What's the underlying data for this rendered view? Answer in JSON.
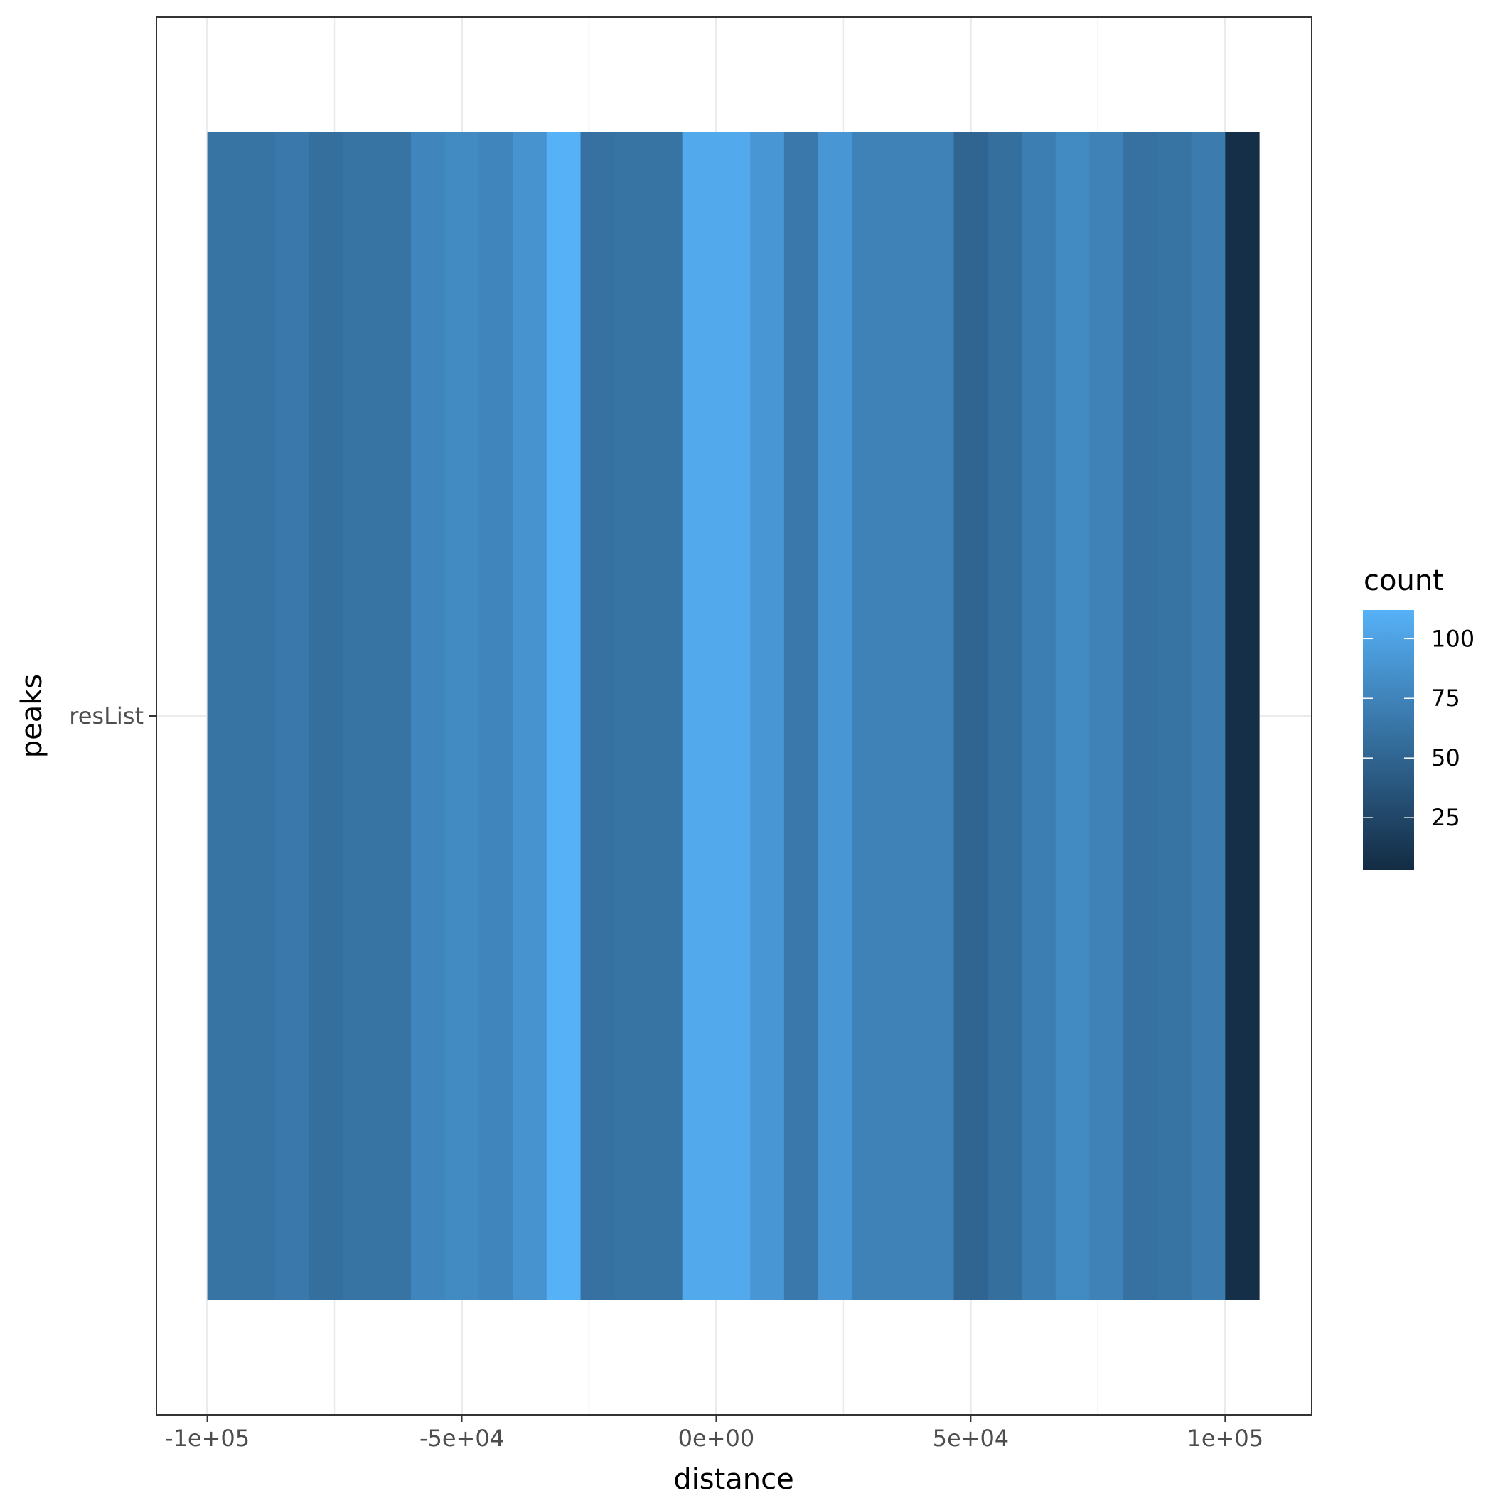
{
  "chart_data": {
    "type": "heatmap",
    "xlabel": "distance",
    "ylabel": "peaks",
    "y_categories": [
      "resList"
    ],
    "x_ticks": [
      {
        "value": -100000,
        "label": "-1e+05"
      },
      {
        "value": -50000,
        "label": "-5e+04"
      },
      {
        "value": 0,
        "label": "0e+00"
      },
      {
        "value": 50000,
        "label": "5e+04"
      },
      {
        "value": 100000,
        "label": "1e+05"
      }
    ],
    "xlim": [
      -110000,
      117000
    ],
    "bin_width": 6667,
    "bin_starts": [
      -100000,
      -93333,
      -86667,
      -80000,
      -73333,
      -66667,
      -60000,
      -53333,
      -46667,
      -40000,
      -33333,
      -26667,
      -20000,
      -13333,
      -6667,
      0,
      6667,
      13333,
      20000,
      26667,
      33333,
      40000,
      46667,
      53333,
      60000,
      66667,
      73333,
      80000,
      86667,
      93333,
      100000
    ],
    "counts": [
      62,
      62,
      66,
      58,
      62,
      62,
      76,
      80,
      76,
      88,
      112,
      60,
      62,
      62,
      106,
      106,
      90,
      66,
      90,
      74,
      74,
      74,
      50,
      58,
      70,
      80,
      74,
      60,
      62,
      68,
      6
    ],
    "legend": {
      "title": "count",
      "ticks": [
        25,
        50,
        75,
        100
      ],
      "range": [
        3,
        112
      ],
      "low_color": "#132b43",
      "high_color": "#56b1f7"
    },
    "grid": true,
    "legend_position": "right"
  }
}
